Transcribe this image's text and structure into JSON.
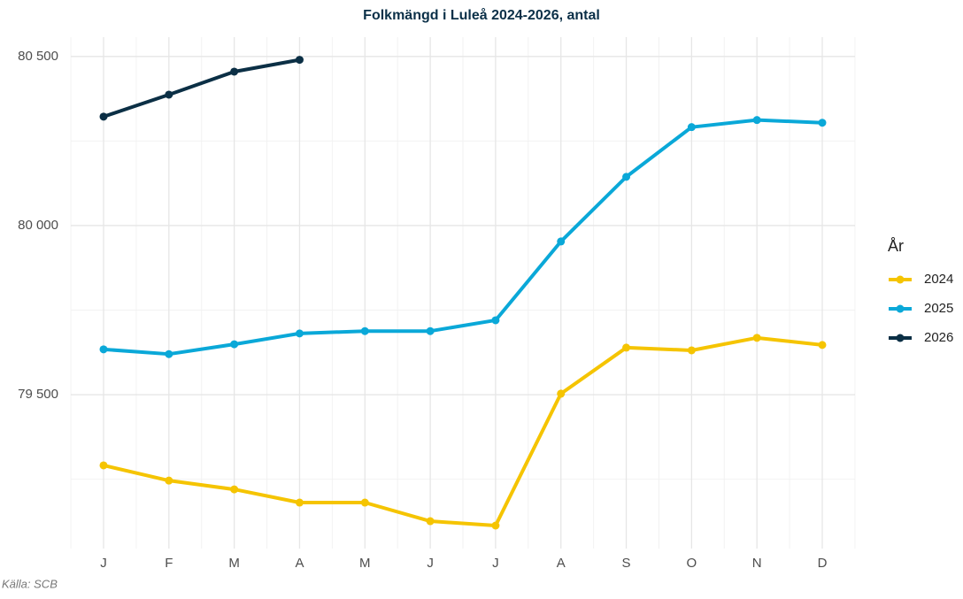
{
  "chart_data": {
    "type": "line",
    "title": "Folkmängd i Luleå 2024-2026, antal",
    "caption": "Källa: SCB",
    "legend_title": "År",
    "legend_position": "right",
    "categories": [
      "J",
      "F",
      "M",
      "A",
      "M",
      "J",
      "J",
      "A",
      "S",
      "O",
      "N",
      "D"
    ],
    "series": [
      {
        "name": "2024",
        "color": "#f5c400",
        "values": [
          79291,
          79246,
          79220,
          79181,
          79181,
          79126,
          79113,
          79503,
          79639,
          79631,
          79668,
          79647
        ]
      },
      {
        "name": "2025",
        "color": "#0aa8d8",
        "values": [
          79634,
          79620,
          79649,
          79681,
          79688,
          79688,
          79720,
          79953,
          80144,
          80291,
          80312,
          80304
        ]
      },
      {
        "name": "2026",
        "color": "#0b2f45",
        "values": [
          80322,
          80387,
          80455,
          80490,
          null,
          null,
          null,
          null,
          null,
          null,
          null,
          null
        ]
      }
    ],
    "ylim": [
      79045,
      80557
    ],
    "yticks": [
      {
        "value": 79500,
        "label": "79 500"
      },
      {
        "value": 80000,
        "label": "80 000"
      },
      {
        "value": 80500,
        "label": "80 500"
      }
    ],
    "minor_yticks": [
      79250,
      79750,
      80250
    ],
    "grid": true
  }
}
